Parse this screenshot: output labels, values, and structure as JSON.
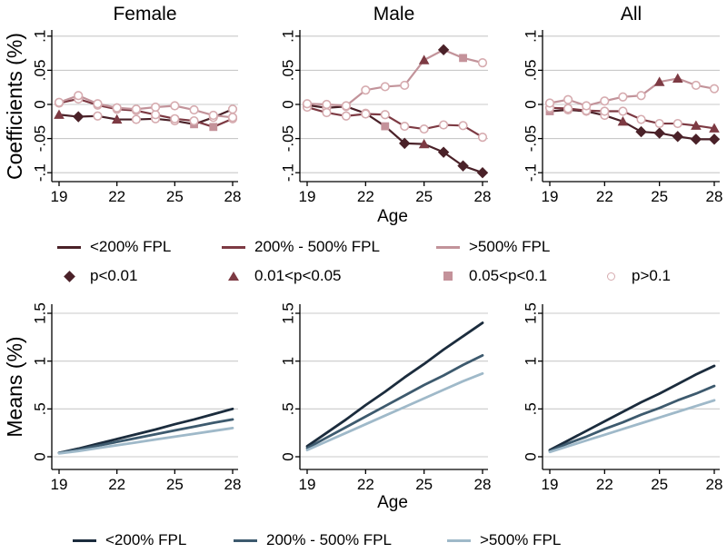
{
  "figure": {
    "top_row_ylabel": "Coefficients (%)",
    "bottom_row_ylabel": "Means (%)",
    "age_axis_label": "Age",
    "x_ticks": [
      19,
      22,
      25,
      28
    ],
    "coef_y_ticks": [
      ".1",
      ".05",
      "0",
      "-.05",
      "-.1"
    ],
    "means_y_ticks": [
      "1.5",
      "1",
      ".5",
      "0"
    ]
  },
  "colors": {
    "coef_lt200": "#4a2128",
    "coef_mid": "#7d3a43",
    "coef_gt500": "#c2939a",
    "marker_diamond": "#4a2128",
    "marker_triangle": "#7d3a43",
    "marker_square": "#c4929a",
    "marker_circle": "#d6abaf",
    "means_lt200": "#1b2c3d",
    "means_mid": "#3d5a6e",
    "means_gt500": "#9fb9c9",
    "grid": "#c9c9c9",
    "axis": "#000000"
  },
  "legend_coef_lines": [
    {
      "label": "<200% FPL",
      "color_key": "coef_lt200"
    },
    {
      "label": "200% - 500% FPL",
      "color_key": "coef_mid"
    },
    {
      "label": ">500% FPL",
      "color_key": "coef_gt500"
    }
  ],
  "legend_pvalues": [
    {
      "shape": "diamond",
      "label": "p<0.01",
      "color_key": "marker_diamond"
    },
    {
      "shape": "triangle",
      "label": "0.01<p<0.05",
      "color_key": "marker_triangle"
    },
    {
      "shape": "square",
      "label": "0.05<p<0.1",
      "color_key": "marker_square"
    },
    {
      "shape": "circle",
      "label": "p>0.1",
      "color_key": "marker_circle"
    }
  ],
  "legend_means": [
    {
      "label": "<200% FPL",
      "color_key": "means_lt200"
    },
    {
      "label": "200% - 500% FPL",
      "color_key": "means_mid"
    },
    {
      "label": ">500% FPL",
      "color_key": "means_gt500"
    }
  ],
  "chart_data": [
    {
      "panel": "coef-female",
      "type": "line",
      "title": "Female",
      "ylabel": "Coefficients (%)",
      "xlabel": "Age",
      "ylim": [
        -0.1,
        0.1
      ],
      "x": [
        19,
        20,
        21,
        22,
        23,
        24,
        25,
        26,
        27,
        28
      ],
      "series": [
        {
          "name": "<200% FPL",
          "color_key": "coef_lt200",
          "values": [
            -0.015,
            -0.018,
            -0.017,
            -0.022,
            -0.022,
            -0.021,
            -0.024,
            -0.029,
            -0.019,
            -0.007
          ],
          "markers": [
            "triangle",
            "diamond",
            "circle",
            "triangle",
            "circle",
            "circle",
            "circle",
            "square",
            "circle",
            "circle"
          ]
        },
        {
          "name": "200% - 500% FPL",
          "color_key": "coef_mid",
          "values": [
            0.002,
            0.008,
            -0.001,
            -0.007,
            -0.009,
            -0.015,
            -0.021,
            -0.024,
            -0.033,
            -0.021
          ],
          "markers": [
            "circle",
            "circle",
            "circle",
            "circle",
            "circle",
            "circle",
            "circle",
            "circle",
            "square",
            "circle"
          ]
        },
        {
          "name": ">500% FPL",
          "color_key": "coef_gt500",
          "values": [
            0.003,
            0.013,
            0.001,
            -0.005,
            -0.007,
            -0.004,
            -0.002,
            -0.008,
            -0.016,
            -0.019
          ],
          "markers": [
            "circle",
            "circle",
            "circle",
            "circle",
            "circle",
            "circle",
            "circle",
            "circle",
            "circle",
            "circle"
          ]
        }
      ]
    },
    {
      "panel": "coef-male",
      "type": "line",
      "title": "Male",
      "ylabel": "Coefficients (%)",
      "xlabel": "Age",
      "ylim": [
        -0.1,
        0.1
      ],
      "x": [
        19,
        20,
        21,
        22,
        23,
        24,
        25,
        26,
        27,
        28
      ],
      "series": [
        {
          "name": "<200% FPL",
          "color_key": "coef_lt200",
          "values": [
            -0.001,
            -0.005,
            -0.003,
            -0.013,
            -0.032,
            -0.057,
            -0.058,
            -0.07,
            -0.09,
            -0.1
          ],
          "markers": [
            "circle",
            "circle",
            "circle",
            "circle",
            "square",
            "diamond",
            "triangle",
            "diamond",
            "diamond",
            "diamond"
          ]
        },
        {
          "name": "200% - 500% FPL",
          "color_key": "coef_mid",
          "values": [
            -0.004,
            -0.012,
            -0.017,
            -0.014,
            -0.015,
            -0.032,
            -0.036,
            -0.03,
            -0.031,
            -0.048
          ],
          "markers": [
            "circle",
            "circle",
            "circle",
            "circle",
            "circle",
            "circle",
            "circle",
            "circle",
            "circle",
            "circle"
          ]
        },
        {
          "name": ">500% FPL",
          "color_key": "coef_gt500",
          "values": [
            0.001,
            0.0,
            -0.002,
            0.021,
            0.026,
            0.028,
            0.065,
            0.08,
            0.068,
            0.061
          ],
          "markers": [
            "circle",
            "circle",
            "circle",
            "circle",
            "circle",
            "circle",
            "triangle",
            "diamond",
            "square",
            "circle"
          ]
        }
      ]
    },
    {
      "panel": "coef-all",
      "type": "line",
      "title": "All",
      "ylabel": "Coefficients (%)",
      "xlabel": "Age",
      "ylim": [
        -0.1,
        0.1
      ],
      "x": [
        19,
        20,
        21,
        22,
        23,
        24,
        25,
        26,
        27,
        28
      ],
      "series": [
        {
          "name": "<200% FPL",
          "color_key": "coef_lt200",
          "values": [
            -0.01,
            -0.008,
            -0.01,
            -0.016,
            -0.025,
            -0.04,
            -0.042,
            -0.047,
            -0.051,
            -0.051
          ],
          "markers": [
            "square",
            "circle",
            "circle",
            "circle",
            "triangle",
            "diamond",
            "diamond",
            "diamond",
            "diamond",
            "diamond"
          ]
        },
        {
          "name": "200% - 500% FPL",
          "color_key": "coef_mid",
          "values": [
            -0.005,
            -0.006,
            -0.009,
            -0.01,
            -0.01,
            -0.022,
            -0.028,
            -0.028,
            -0.031,
            -0.035
          ],
          "markers": [
            "circle",
            "circle",
            "circle",
            "circle",
            "circle",
            "circle",
            "circle",
            "circle",
            "triangle",
            "triangle"
          ]
        },
        {
          "name": ">500% FPL",
          "color_key": "coef_gt500",
          "values": [
            0.002,
            0.007,
            -0.002,
            0.005,
            0.011,
            0.013,
            0.033,
            0.038,
            0.028,
            0.023
          ],
          "markers": [
            "circle",
            "circle",
            "circle",
            "circle",
            "circle",
            "circle",
            "triangle",
            "triangle",
            "circle",
            "circle"
          ]
        }
      ]
    },
    {
      "panel": "means-female",
      "type": "line",
      "ylabel": "Means (%)",
      "xlabel": "Age",
      "ylim": [
        0,
        1.5
      ],
      "x": [
        19,
        20,
        21,
        22,
        23,
        24,
        25,
        26,
        27,
        28
      ],
      "series": [
        {
          "name": "<200% FPL",
          "color_key": "means_lt200",
          "values": [
            0.04,
            0.085,
            0.135,
            0.185,
            0.235,
            0.285,
            0.34,
            0.39,
            0.445,
            0.5
          ]
        },
        {
          "name": "200% - 500% FPL",
          "color_key": "means_mid",
          "values": [
            0.04,
            0.075,
            0.115,
            0.155,
            0.195,
            0.235,
            0.275,
            0.315,
            0.355,
            0.39
          ]
        },
        {
          "name": ">500% FPL",
          "color_key": "means_gt500",
          "values": [
            0.035,
            0.06,
            0.09,
            0.12,
            0.15,
            0.18,
            0.21,
            0.24,
            0.27,
            0.3
          ]
        }
      ]
    },
    {
      "panel": "means-male",
      "type": "line",
      "ylabel": "Means (%)",
      "xlabel": "Age",
      "ylim": [
        0,
        1.5
      ],
      "x": [
        19,
        20,
        21,
        22,
        23,
        24,
        25,
        26,
        27,
        28
      ],
      "series": [
        {
          "name": "<200% FPL",
          "color_key": "means_lt200",
          "values": [
            0.11,
            0.25,
            0.39,
            0.54,
            0.68,
            0.83,
            0.97,
            1.12,
            1.26,
            1.4
          ]
        },
        {
          "name": "200% - 500% FPL",
          "color_key": "means_mid",
          "values": [
            0.09,
            0.2,
            0.31,
            0.42,
            0.53,
            0.64,
            0.75,
            0.85,
            0.96,
            1.06
          ]
        },
        {
          "name": ">500% FPL",
          "color_key": "means_gt500",
          "values": [
            0.07,
            0.16,
            0.25,
            0.34,
            0.43,
            0.52,
            0.61,
            0.7,
            0.79,
            0.87
          ]
        }
      ]
    },
    {
      "panel": "means-all",
      "type": "line",
      "ylabel": "Means (%)",
      "xlabel": "Age",
      "ylim": [
        0,
        1.5
      ],
      "x": [
        19,
        20,
        21,
        22,
        23,
        24,
        25,
        26,
        27,
        28
      ],
      "series": [
        {
          "name": "<200% FPL",
          "color_key": "means_lt200",
          "values": [
            0.07,
            0.17,
            0.27,
            0.37,
            0.47,
            0.57,
            0.66,
            0.76,
            0.86,
            0.95
          ]
        },
        {
          "name": "200% - 500% FPL",
          "color_key": "means_mid",
          "values": [
            0.06,
            0.14,
            0.21,
            0.29,
            0.36,
            0.44,
            0.51,
            0.59,
            0.66,
            0.74
          ]
        },
        {
          "name": ">500% FPL",
          "color_key": "means_gt500",
          "values": [
            0.05,
            0.11,
            0.17,
            0.23,
            0.29,
            0.35,
            0.41,
            0.47,
            0.53,
            0.59
          ]
        }
      ]
    }
  ]
}
